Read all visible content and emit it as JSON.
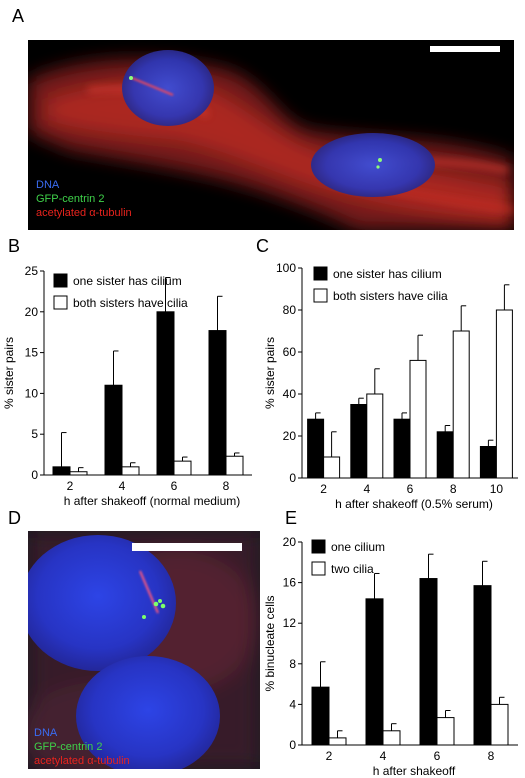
{
  "panels": {
    "a": {
      "letter": "A",
      "legend": [
        "DNA",
        "GFP-centrin 2",
        "acetylated α-tubulin"
      ]
    },
    "b": {
      "letter": "B"
    },
    "c": {
      "letter": "C"
    },
    "d": {
      "letter": "D",
      "legend": [
        "DNA",
        "GFP-centrin 2",
        "acetylated α-tubulin"
      ]
    },
    "e": {
      "letter": "E"
    }
  },
  "colors": {
    "dna": "#3a6cf2",
    "centrin": "#3fd24a",
    "tubulin": "#e8231d",
    "micro_bg": "#000000",
    "filled_bar": "#000000",
    "open_bar": "#ffffff"
  },
  "chart_data": [
    {
      "id": "B",
      "type": "bar",
      "categories": [
        "2",
        "4",
        "6",
        "8"
      ],
      "series": [
        {
          "name": "one sister has cilium",
          "values": [
            1,
            11,
            20,
            17.7
          ],
          "errors": [
            4.2,
            4.2,
            4.2,
            4.2
          ],
          "fill": "#000000"
        },
        {
          "name": "both sisters have cilia",
          "values": [
            0.4,
            1.0,
            1.7,
            2.3
          ],
          "errors": [
            0.5,
            0.5,
            0.5,
            0.4
          ],
          "fill": "#ffffff"
        }
      ],
      "xlabel": "h after shakeoff (normal medium)",
      "ylabel": "% sister pairs",
      "ylim": [
        0,
        25
      ],
      "yticks": [
        "0",
        "5",
        "10",
        "15",
        "20",
        "25"
      ],
      "legend_position": "top-left"
    },
    {
      "id": "C",
      "type": "bar",
      "categories": [
        "2",
        "4",
        "6",
        "8",
        "10"
      ],
      "series": [
        {
          "name": "one sister has cilium",
          "values": [
            28,
            35,
            28,
            22,
            15
          ],
          "errors": [
            3,
            3,
            3,
            3,
            3
          ],
          "fill": "#000000"
        },
        {
          "name": "both sisters have cilia",
          "values": [
            10,
            40,
            56,
            70,
            80
          ],
          "errors": [
            12,
            12,
            12,
            12,
            12
          ],
          "fill": "#ffffff"
        }
      ],
      "xlabel": "h after shakeoff (0.5% serum)",
      "ylabel": "% sister pairs",
      "ylim": [
        0,
        100
      ],
      "yticks": [
        "0",
        "20",
        "40",
        "60",
        "80",
        "100"
      ],
      "legend_position": "top-left"
    },
    {
      "id": "E",
      "type": "bar",
      "categories": [
        "2",
        "4",
        "6",
        "8"
      ],
      "series": [
        {
          "name": "one cilium",
          "values": [
            5.7,
            14.4,
            16.4,
            15.7
          ],
          "errors": [
            2.5,
            2.5,
            2.4,
            2.4
          ],
          "fill": "#000000"
        },
        {
          "name": "two cilia",
          "values": [
            0.7,
            1.4,
            2.7,
            4.0
          ],
          "errors": [
            0.7,
            0.7,
            0.7,
            0.7
          ],
          "fill": "#ffffff"
        }
      ],
      "xlabel": "h after shakeoff",
      "ylabel": "% binucleate cells",
      "ylim": [
        0,
        20
      ],
      "yticks": [
        "0",
        "4",
        "8",
        "12",
        "16",
        "20"
      ],
      "legend_position": "top-left"
    }
  ]
}
